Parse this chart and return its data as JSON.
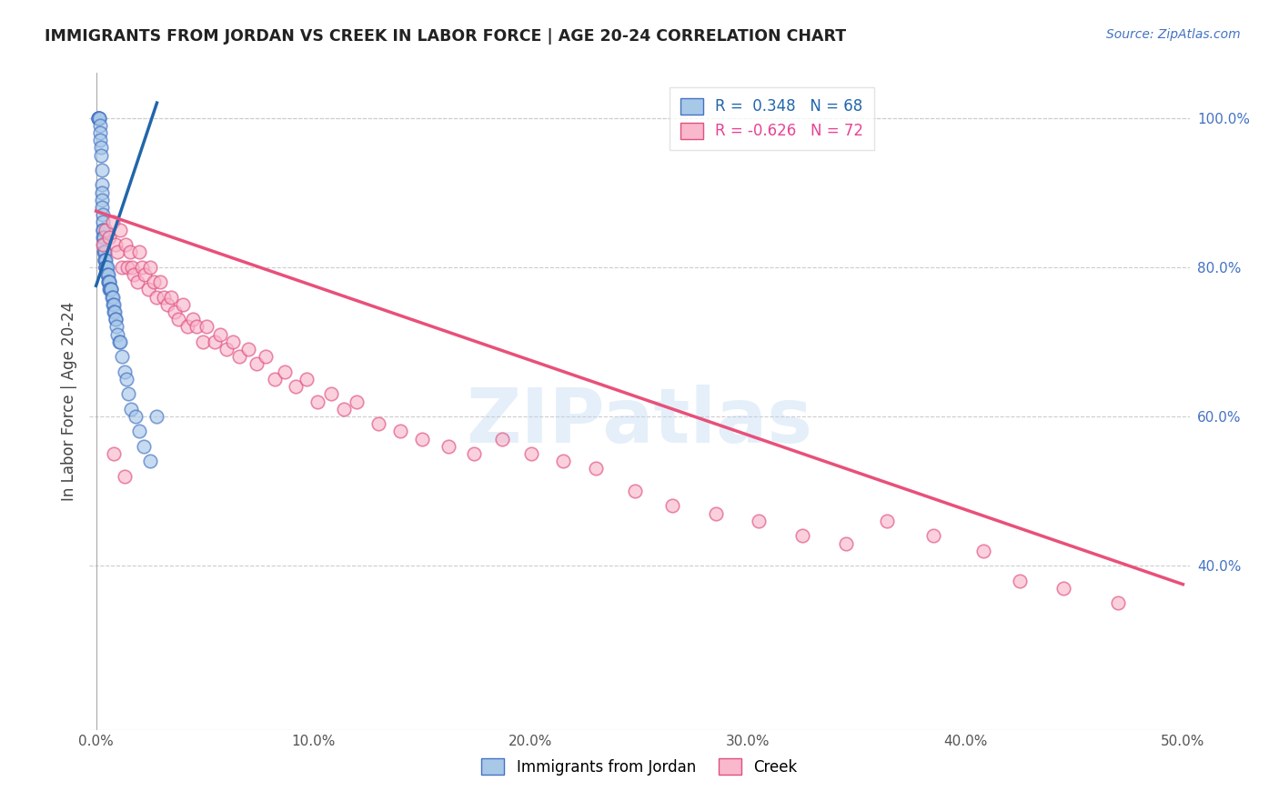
{
  "title": "IMMIGRANTS FROM JORDAN VS CREEK IN LABOR FORCE | AGE 20-24 CORRELATION CHART",
  "source_text": "Source: ZipAtlas.com",
  "ylabel": "In Labor Force | Age 20-24",
  "xlim": [
    -0.003,
    0.503
  ],
  "ylim": [
    0.18,
    1.06
  ],
  "xticks": [
    0.0,
    0.1,
    0.2,
    0.3,
    0.4,
    0.5
  ],
  "xticklabels": [
    "0.0%",
    "10.0%",
    "20.0%",
    "30.0%",
    "40.0%",
    "50.0%"
  ],
  "yticks_right": [
    0.4,
    0.6,
    0.8,
    1.0
  ],
  "yticklabels_right": [
    "40.0%",
    "60.0%",
    "80.0%",
    "100.0%"
  ],
  "legend_blue_label": "R =  0.348   N = 68",
  "legend_pink_label": "R = -0.626   N = 72",
  "jordan_color": "#a8c8e8",
  "jordan_edge_color": "#4472c4",
  "creek_color": "#f9b8cc",
  "creek_edge_color": "#e05080",
  "jordan_trend_color": "#2166ac",
  "creek_trend_color": "#e8507a",
  "watermark": "ZIPatlas",
  "jordan_x": [
    0.0008,
    0.001,
    0.0012,
    0.0015,
    0.0015,
    0.0018,
    0.002,
    0.002,
    0.0022,
    0.0022,
    0.0025,
    0.0025,
    0.0025,
    0.0028,
    0.0028,
    0.003,
    0.003,
    0.003,
    0.0032,
    0.0032,
    0.0035,
    0.0035,
    0.0035,
    0.0038,
    0.0038,
    0.004,
    0.004,
    0.0042,
    0.0042,
    0.0042,
    0.0045,
    0.0045,
    0.0048,
    0.005,
    0.005,
    0.0052,
    0.0055,
    0.0055,
    0.0058,
    0.006,
    0.006,
    0.0062,
    0.0065,
    0.0065,
    0.0068,
    0.007,
    0.0072,
    0.0075,
    0.0078,
    0.008,
    0.0082,
    0.0085,
    0.0088,
    0.009,
    0.0095,
    0.01,
    0.0105,
    0.011,
    0.012,
    0.013,
    0.014,
    0.015,
    0.016,
    0.018,
    0.02,
    0.022,
    0.025,
    0.028
  ],
  "jordan_y": [
    1.0,
    1.0,
    1.0,
    1.0,
    1.0,
    0.99,
    0.98,
    0.97,
    0.96,
    0.95,
    0.93,
    0.91,
    0.9,
    0.89,
    0.88,
    0.87,
    0.86,
    0.85,
    0.85,
    0.84,
    0.84,
    0.83,
    0.82,
    0.82,
    0.82,
    0.81,
    0.81,
    0.81,
    0.8,
    0.8,
    0.8,
    0.8,
    0.8,
    0.8,
    0.79,
    0.79,
    0.79,
    0.78,
    0.78,
    0.78,
    0.78,
    0.77,
    0.77,
    0.77,
    0.77,
    0.77,
    0.76,
    0.76,
    0.75,
    0.75,
    0.74,
    0.74,
    0.73,
    0.73,
    0.72,
    0.71,
    0.7,
    0.7,
    0.68,
    0.66,
    0.65,
    0.63,
    0.61,
    0.6,
    0.58,
    0.56,
    0.54,
    0.6
  ],
  "creek_x": [
    0.003,
    0.0045,
    0.006,
    0.0075,
    0.009,
    0.01,
    0.011,
    0.012,
    0.0135,
    0.0145,
    0.0155,
    0.0165,
    0.0175,
    0.019,
    0.02,
    0.021,
    0.0225,
    0.024,
    0.025,
    0.0265,
    0.028,
    0.0295,
    0.031,
    0.033,
    0.0345,
    0.036,
    0.038,
    0.04,
    0.042,
    0.0445,
    0.046,
    0.049,
    0.051,
    0.0545,
    0.057,
    0.06,
    0.063,
    0.066,
    0.07,
    0.074,
    0.078,
    0.082,
    0.087,
    0.092,
    0.097,
    0.102,
    0.108,
    0.114,
    0.12,
    0.13,
    0.14,
    0.15,
    0.162,
    0.174,
    0.187,
    0.2,
    0.215,
    0.23,
    0.248,
    0.265,
    0.285,
    0.305,
    0.325,
    0.345,
    0.364,
    0.385,
    0.408,
    0.425,
    0.445,
    0.47,
    0.008,
    0.013
  ],
  "creek_y": [
    0.83,
    0.85,
    0.84,
    0.86,
    0.83,
    0.82,
    0.85,
    0.8,
    0.83,
    0.8,
    0.82,
    0.8,
    0.79,
    0.78,
    0.82,
    0.8,
    0.79,
    0.77,
    0.8,
    0.78,
    0.76,
    0.78,
    0.76,
    0.75,
    0.76,
    0.74,
    0.73,
    0.75,
    0.72,
    0.73,
    0.72,
    0.7,
    0.72,
    0.7,
    0.71,
    0.69,
    0.7,
    0.68,
    0.69,
    0.67,
    0.68,
    0.65,
    0.66,
    0.64,
    0.65,
    0.62,
    0.63,
    0.61,
    0.62,
    0.59,
    0.58,
    0.57,
    0.56,
    0.55,
    0.57,
    0.55,
    0.54,
    0.53,
    0.5,
    0.48,
    0.47,
    0.46,
    0.44,
    0.43,
    0.46,
    0.44,
    0.42,
    0.38,
    0.37,
    0.35,
    0.55,
    0.52
  ],
  "jordan_trend_x": [
    0.0,
    0.028
  ],
  "jordan_trend_y": [
    0.775,
    1.02
  ],
  "creek_trend_x": [
    0.0,
    0.5
  ],
  "creek_trend_y": [
    0.875,
    0.375
  ]
}
